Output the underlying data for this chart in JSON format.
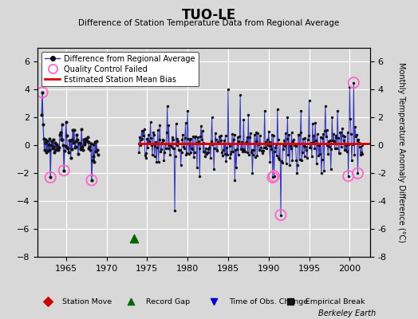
{
  "title": "TUO-LE",
  "subtitle": "Difference of Station Temperature Data from Regional Average",
  "ylabel_right": "Monthly Temperature Anomaly Difference (°C)",
  "xlim": [
    1961.5,
    2002.5
  ],
  "ylim": [
    -8,
    7
  ],
  "yticks": [
    -8,
    -6,
    -4,
    -2,
    0,
    2,
    4,
    6
  ],
  "xticks": [
    1965,
    1970,
    1975,
    1980,
    1985,
    1990,
    1995,
    2000
  ],
  "bias_line_y": 0.15,
  "bg_color": "#d8d8d8",
  "plot_bg_color": "#d8d8d8",
  "line_color": "#3333bb",
  "dot_color": "#111111",
  "bias_color": "#dd0000",
  "qc_color": "#ff66cc",
  "record_gap_color": "#006600",
  "berkeley_earth_text": "Berkeley Earth",
  "early_period": [
    1962.0,
    1969.0
  ],
  "main_period": [
    1974.0,
    2001.5
  ],
  "bottom_legend": [
    {
      "label": "Station Move",
      "color": "#cc0000",
      "marker": "D"
    },
    {
      "label": "Record Gap",
      "color": "#006600",
      "marker": "^"
    },
    {
      "label": "Time of Obs. Change",
      "color": "#0000cc",
      "marker": "v"
    },
    {
      "label": "Empirical Break",
      "color": "#111111",
      "marker": "s"
    }
  ]
}
